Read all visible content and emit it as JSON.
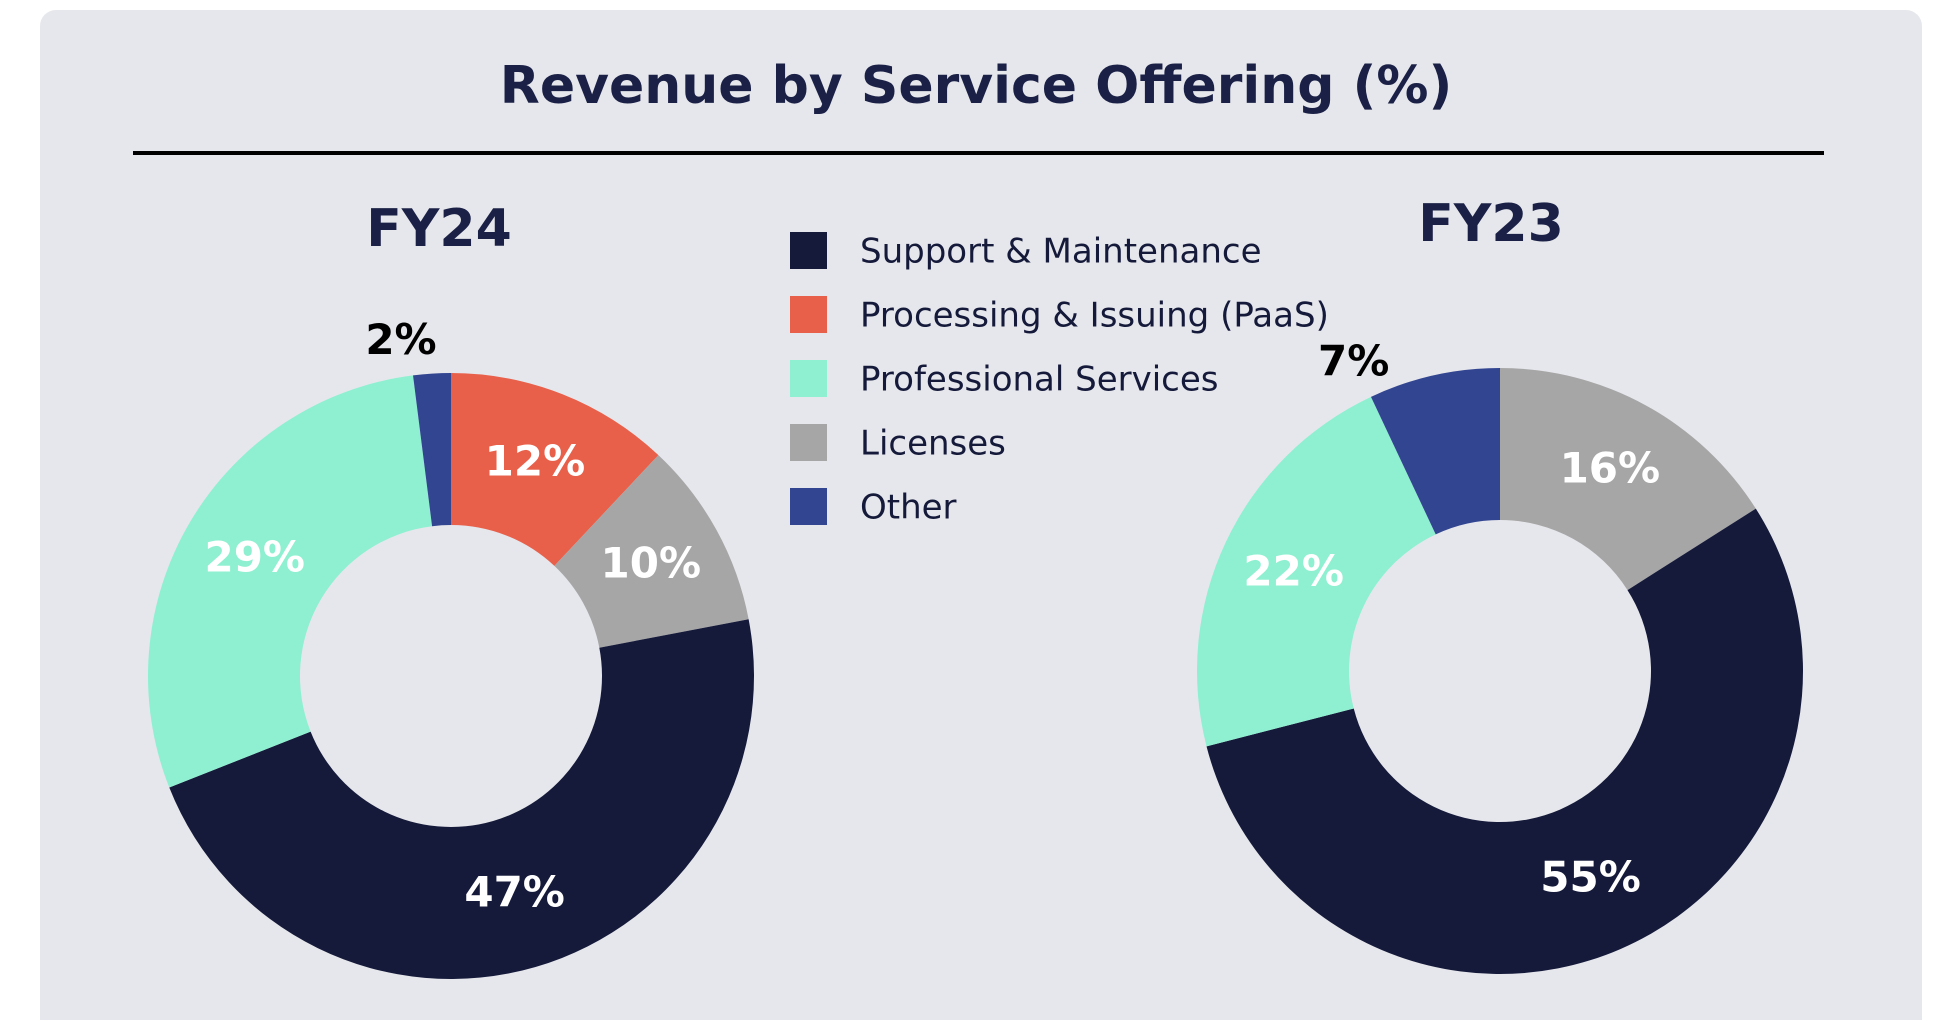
{
  "title": "Revenue by Service Offering (%)",
  "legend": {
    "categories": [
      "Support & Maintenance",
      "Processing & Issuing (PaaS)",
      "Professional Services",
      "Licenses",
      "Other"
    ],
    "colors": [
      "#151a3a",
      "#e8604a",
      "#8ef0d0",
      "#a6a6a6",
      "#324591"
    ]
  },
  "chart_data": [
    {
      "type": "pie",
      "donut": true,
      "title": "FY24",
      "values": [
        47,
        12,
        29,
        10,
        2
      ],
      "value_labels": [
        "47%",
        "12%",
        "29%",
        "10%",
        "2%"
      ]
    },
    {
      "type": "pie",
      "donut": true,
      "title": "FY23",
      "values": [
        55,
        null,
        22,
        16,
        7
      ],
      "value_labels": [
        "55%",
        null,
        "22%",
        "16%",
        "7%"
      ]
    }
  ]
}
